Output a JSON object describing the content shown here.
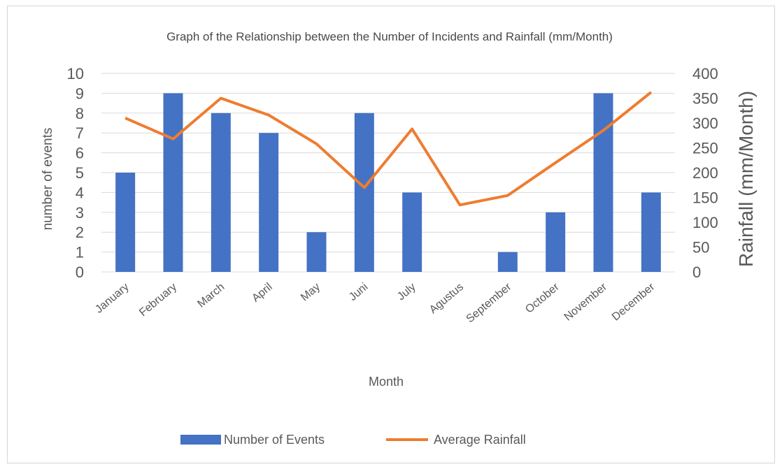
{
  "chart_data": {
    "type": "bar",
    "title": "Graph of the Relationship between the Number of Incidents and Rainfall (mm/Month)",
    "xlabel": "Month",
    "ylabel_left": "number of events",
    "ylabel_right": "Rainfall (mm/Month)",
    "categories": [
      "January",
      "February",
      "March",
      "April",
      "May",
      "Juni",
      "July",
      "Agustus",
      "September",
      "October",
      "November",
      "December"
    ],
    "ylim_left": [
      0,
      10
    ],
    "yticks_left": [
      0,
      1,
      2,
      3,
      4,
      5,
      6,
      7,
      8,
      9,
      10
    ],
    "ylim_right": [
      0,
      400
    ],
    "yticks_right": [
      0,
      50,
      100,
      150,
      200,
      250,
      300,
      350,
      400
    ],
    "grid": true,
    "legend_position": "bottom",
    "series": [
      {
        "name": "Number of Events",
        "type": "bar",
        "axis": "left",
        "color": "#4472C4",
        "values": [
          5,
          9,
          8,
          7,
          2,
          8,
          4,
          0,
          1,
          3,
          9,
          4
        ]
      },
      {
        "name": "Average Rainfall",
        "type": "line",
        "axis": "right",
        "color": "#ED7D31",
        "values": [
          310,
          268,
          350,
          316,
          258,
          170,
          288,
          135,
          154,
          220,
          285,
          362
        ]
      }
    ]
  }
}
